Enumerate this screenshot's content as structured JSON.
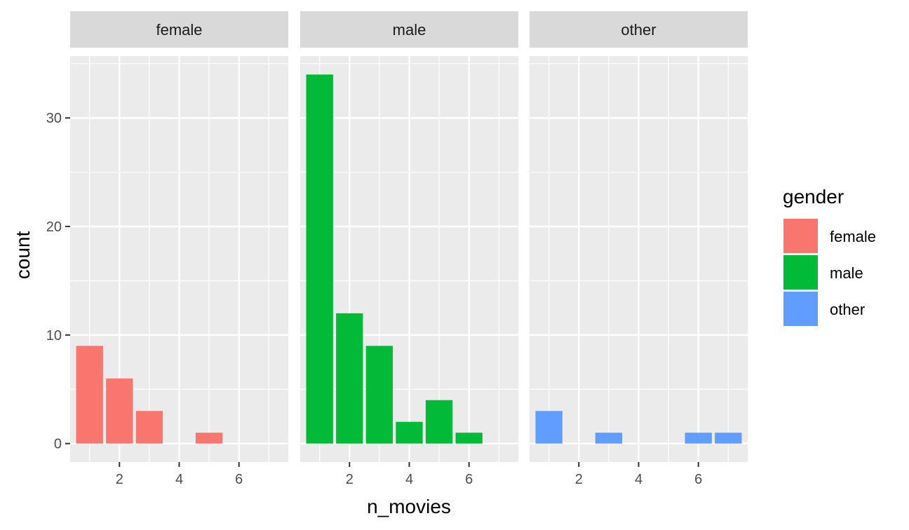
{
  "chart_data": {
    "type": "bar",
    "facet_variable": "gender",
    "xlabel": "n_movies",
    "ylabel": "count",
    "xlim": [
      0.35,
      7.65
    ],
    "ylim": [
      -1.7,
      35.7
    ],
    "x_ticks": [
      2,
      4,
      6
    ],
    "y_ticks": [
      0,
      10,
      20,
      30
    ],
    "grid": true,
    "legend": {
      "title": "gender",
      "position": "right",
      "entries": [
        {
          "label": "female",
          "color": "#F8766D"
        },
        {
          "label": "male",
          "color": "#00BA38"
        },
        {
          "label": "other",
          "color": "#619CFF"
        }
      ]
    },
    "panels": [
      {
        "strip": "female",
        "color": "#F8766D",
        "x": [
          1,
          2,
          3,
          5
        ],
        "values": [
          9,
          6,
          3,
          1
        ]
      },
      {
        "strip": "male",
        "color": "#00BA38",
        "x": [
          1,
          2,
          3,
          4,
          5,
          6
        ],
        "values": [
          34,
          12,
          9,
          2,
          4,
          1
        ]
      },
      {
        "strip": "other",
        "color": "#619CFF",
        "x": [
          1,
          3,
          6,
          7
        ],
        "values": [
          3,
          1,
          1,
          1
        ]
      }
    ]
  }
}
